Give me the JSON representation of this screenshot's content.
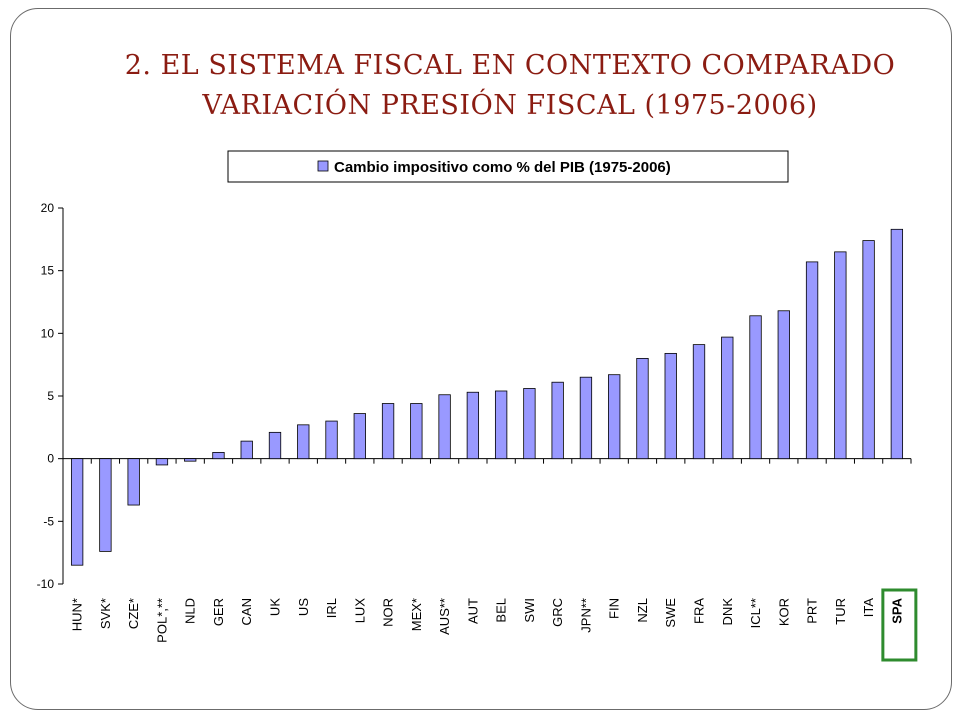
{
  "slide": {
    "title_line1": "2. EL SISTEMA FISCAL EN CONTEXTO COMPARADO",
    "title_line2": "VARIACIÓN PRESIÓN FISCAL (1975-2006)"
  },
  "chart_data": {
    "type": "bar",
    "title": "",
    "xlabel": "",
    "ylabel": "",
    "ylim": [
      -10,
      20
    ],
    "yticks": [
      20,
      15,
      10,
      5,
      0,
      -5,
      -10
    ],
    "grid": false,
    "legend_position": "top",
    "categories": [
      "HUN*",
      "SVK*",
      "CZE*",
      "POL*,**",
      "NLD",
      "GER",
      "CAN",
      "UK",
      "US",
      "IRL",
      "LUX",
      "NOR",
      "MEX*",
      "AUS**",
      "AUT",
      "BEL",
      "SWI",
      "GRC",
      "JPN**",
      "FIN",
      "NZL",
      "SWE",
      "FRA",
      "DNK",
      "ICL**",
      "KOR",
      "PRT",
      "TUR",
      "ITA",
      "SPA"
    ],
    "series": [
      {
        "name": "Cambio impositivo como % del PIB (1975-2006)",
        "color": "#9999ff",
        "values": [
          -8.5,
          -7.4,
          -3.7,
          -0.5,
          -0.2,
          0.5,
          1.4,
          2.1,
          2.7,
          3.0,
          3.6,
          4.4,
          4.4,
          5.1,
          5.3,
          5.4,
          5.6,
          6.1,
          6.5,
          6.7,
          8.0,
          8.4,
          9.1,
          9.7,
          11.4,
          11.8,
          15.7,
          16.5,
          17.4,
          18.3
        ]
      }
    ],
    "highlight_category": "SPA",
    "highlight_color": "#2e8b2e"
  }
}
